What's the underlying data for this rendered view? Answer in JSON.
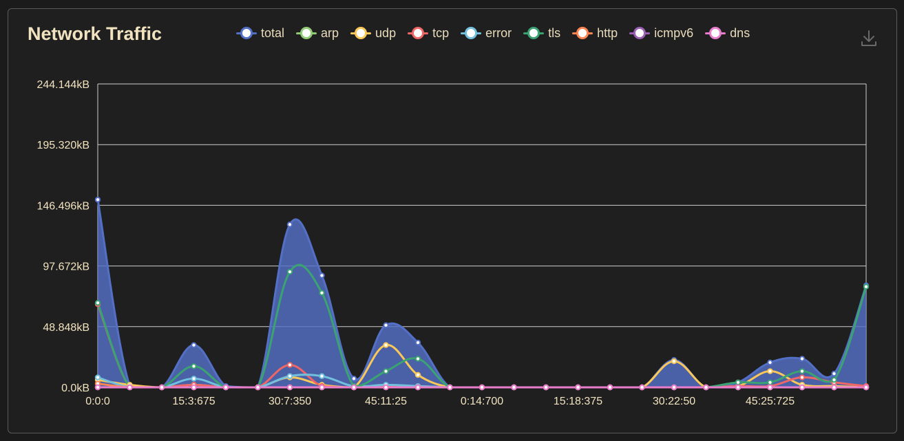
{
  "header": {
    "title": "Network Traffic"
  },
  "toolbar": {
    "download_icon": "download-icon"
  },
  "chart_data": {
    "type": "area",
    "title": "Network Traffic",
    "xlabel": "",
    "ylabel": "",
    "x_ticks": [
      "0:0:0",
      "15:3:675",
      "30:7:350",
      "45:11:25",
      "0:14:700",
      "15:18:375",
      "30:22:50",
      "45:25:725"
    ],
    "y_ticks": [
      "0.0kB",
      "48.848kB",
      "97.672kB",
      "146.496kB",
      "195.320kB",
      "244.144kB"
    ],
    "ylim": [
      0,
      244.144
    ],
    "grid": true,
    "legend_position": "top",
    "series": [
      {
        "name": "total",
        "color": "#5470c6",
        "filled": true,
        "values": [
          151,
          1,
          0,
          34,
          1,
          0,
          131,
          90,
          7,
          50,
          36,
          0,
          0,
          0,
          0,
          0,
          0,
          0,
          22,
          0,
          4,
          20,
          23,
          11,
          82
        ]
      },
      {
        "name": "arp",
        "color": "#91cc75",
        "values": [
          0,
          0,
          0,
          0,
          0,
          0,
          0,
          0,
          0,
          0,
          0,
          0,
          0,
          0,
          0,
          0,
          0,
          0,
          0,
          0,
          0,
          0,
          0,
          0,
          0
        ]
      },
      {
        "name": "udp",
        "color": "#fac858",
        "values": [
          6,
          2,
          0,
          2,
          0,
          0,
          8,
          2,
          0,
          34,
          10,
          0,
          0,
          0,
          0,
          0,
          0,
          0,
          21,
          0,
          1,
          13,
          2,
          1,
          0
        ]
      },
      {
        "name": "tcp",
        "color": "#ee6666",
        "values": [
          67,
          0,
          0,
          2,
          0,
          0,
          18,
          1,
          0,
          1,
          1,
          0,
          0,
          0,
          0,
          0,
          0,
          0,
          0,
          0,
          1,
          1,
          8,
          4,
          1
        ]
      },
      {
        "name": "error",
        "color": "#73c0de",
        "values": [
          8,
          0,
          0,
          7,
          0,
          0,
          9,
          9,
          1,
          2,
          1,
          0,
          0,
          0,
          0,
          0,
          0,
          0,
          0,
          0,
          0,
          0,
          0,
          0,
          0
        ]
      },
      {
        "name": "tls",
        "color": "#3ba272",
        "values": [
          68,
          0,
          0,
          17,
          0,
          0,
          93,
          76,
          1,
          13,
          23,
          0,
          0,
          0,
          0,
          0,
          0,
          0,
          0,
          0,
          4,
          4,
          13,
          6,
          81
        ]
      },
      {
        "name": "http",
        "color": "#fc8452",
        "values": [
          3,
          0,
          0,
          0,
          0,
          0,
          0,
          0,
          0,
          0,
          0,
          0,
          0,
          0,
          0,
          0,
          0,
          0,
          0,
          0,
          0,
          0,
          0,
          0,
          0
        ]
      },
      {
        "name": "icmpv6",
        "color": "#9a60b4",
        "values": [
          0,
          0,
          0,
          0,
          0,
          0,
          0,
          0,
          0,
          0,
          0,
          0,
          0,
          0,
          0,
          0,
          0,
          0,
          0,
          0,
          0,
          0,
          0,
          0,
          0
        ]
      },
      {
        "name": "dns",
        "color": "#ea7ccc",
        "values": [
          0,
          0,
          0,
          0,
          0,
          0,
          0,
          0,
          0,
          0,
          0,
          0,
          0,
          0,
          0,
          0,
          0,
          0,
          0,
          0,
          0,
          0,
          0,
          0,
          0
        ]
      }
    ]
  }
}
